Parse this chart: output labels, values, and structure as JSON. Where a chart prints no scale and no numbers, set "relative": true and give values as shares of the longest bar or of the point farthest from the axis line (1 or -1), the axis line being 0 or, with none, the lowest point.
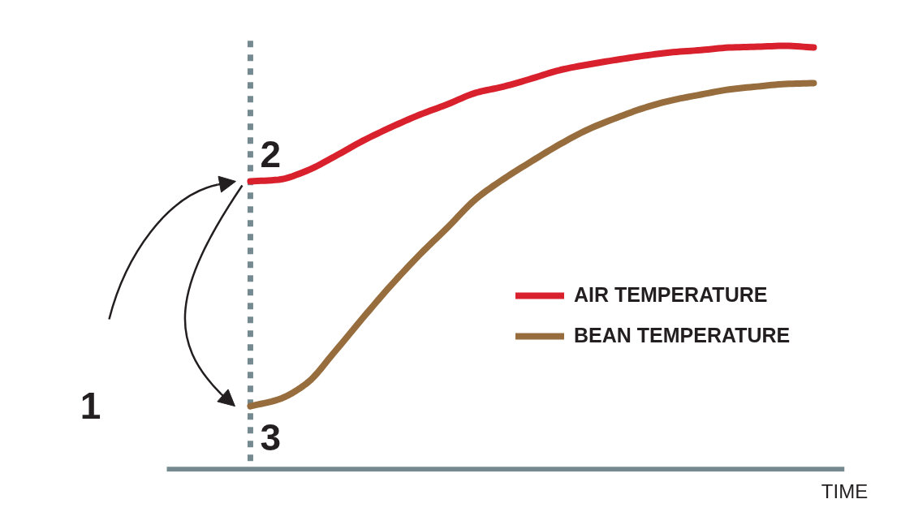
{
  "chart_data": {
    "type": "line",
    "relative": true,
    "categories": [
      null,
      null,
      null,
      null,
      null,
      null,
      null,
      null,
      null,
      null,
      null,
      null,
      null,
      null,
      null,
      null,
      null,
      null,
      null,
      null,
      null
    ],
    "series": [
      {
        "name": "AIR TEMPERATURE",
        "color": "#d9212e",
        "values": [
          0.68,
          0.684,
          0.705,
          0.739,
          0.776,
          0.808,
          0.837,
          0.862,
          0.889,
          0.904,
          0.923,
          0.943,
          0.956,
          0.967,
          0.977,
          0.985,
          0.99,
          0.996,
          0.998,
          1,
          0.996
        ]
      },
      {
        "name": "BEAN TEMPERATURE",
        "color": "#976d3e",
        "values": [
          0.149,
          0.165,
          0.203,
          0.278,
          0.358,
          0.435,
          0.506,
          0.571,
          0.638,
          0.686,
          0.728,
          0.768,
          0.803,
          0.83,
          0.854,
          0.872,
          0.885,
          0.897,
          0.904,
          0.91,
          0.912
        ]
      }
    ],
    "xlabel": "TIME",
    "annotations": [
      "1",
      "2",
      "3"
    ],
    "legend": "right"
  }
}
